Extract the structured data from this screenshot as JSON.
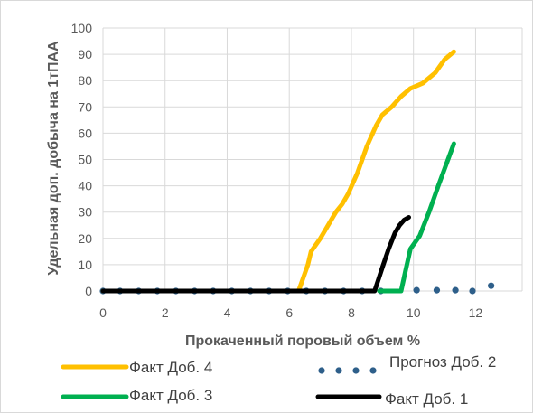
{
  "chart_data": {
    "type": "line",
    "xlabel": "Прокаченный  поровый объем %",
    "ylabel": "Удельная доп. добыча на 1тПАА",
    "xlim": [
      0,
      13.5
    ],
    "ylim": [
      0,
      100
    ],
    "x_ticks": [
      0,
      2,
      4,
      6,
      8,
      10,
      12
    ],
    "y_ticks": [
      0,
      10,
      20,
      30,
      40,
      50,
      60,
      70,
      80,
      90,
      100
    ],
    "grid": true,
    "legend_position": "bottom",
    "series": [
      {
        "name": "Факт Доб. 4",
        "color": "#FFC000",
        "style": "solid",
        "points": [
          [
            0,
            0
          ],
          [
            6.3,
            0
          ],
          [
            6.45,
            5
          ],
          [
            6.6,
            10
          ],
          [
            6.7,
            15
          ],
          [
            7.0,
            20
          ],
          [
            7.3,
            26
          ],
          [
            7.5,
            30
          ],
          [
            7.7,
            33
          ],
          [
            7.9,
            37
          ],
          [
            8.2,
            45
          ],
          [
            8.5,
            55
          ],
          [
            8.8,
            63
          ],
          [
            9.0,
            67
          ],
          [
            9.3,
            70
          ],
          [
            9.6,
            74
          ],
          [
            9.9,
            77
          ],
          [
            10.3,
            79
          ],
          [
            10.7,
            83
          ],
          [
            11.0,
            88
          ],
          [
            11.3,
            91
          ]
        ]
      },
      {
        "name": "Прогноз Доб. 2",
        "color": "#2E5F8A",
        "style": "dotted",
        "points": [
          [
            0,
            0
          ],
          [
            0.55,
            0
          ],
          [
            1.15,
            0
          ],
          [
            1.75,
            0
          ],
          [
            2.35,
            0
          ],
          [
            2.95,
            0
          ],
          [
            3.55,
            0
          ],
          [
            4.15,
            0
          ],
          [
            4.75,
            0
          ],
          [
            5.35,
            0
          ],
          [
            5.95,
            0
          ],
          [
            6.55,
            0
          ],
          [
            7.15,
            0
          ],
          [
            7.75,
            0
          ],
          [
            8.35,
            0
          ],
          [
            8.95,
            0
          ],
          [
            10.1,
            0.3
          ],
          [
            10.75,
            0.3
          ],
          [
            11.35,
            0.3
          ],
          [
            11.9,
            0
          ],
          [
            12.5,
            2
          ]
        ]
      },
      {
        "name": "Факт Доб. 3",
        "color": "#00B050",
        "style": "solid",
        "points": [
          [
            8.9,
            0
          ],
          [
            9.6,
            0
          ],
          [
            9.75,
            8
          ],
          [
            9.9,
            16
          ],
          [
            10.2,
            21
          ],
          [
            10.5,
            30
          ],
          [
            10.8,
            40
          ],
          [
            11.05,
            48
          ],
          [
            11.3,
            56
          ]
        ]
      },
      {
        "name": "Факт Доб. 1",
        "color": "#000000",
        "style": "solid",
        "points": [
          [
            0,
            0
          ],
          [
            8.75,
            0
          ],
          [
            9.0,
            9
          ],
          [
            9.2,
            16
          ],
          [
            9.4,
            22
          ],
          [
            9.55,
            25
          ],
          [
            9.7,
            27
          ],
          [
            9.85,
            28
          ]
        ]
      }
    ]
  }
}
